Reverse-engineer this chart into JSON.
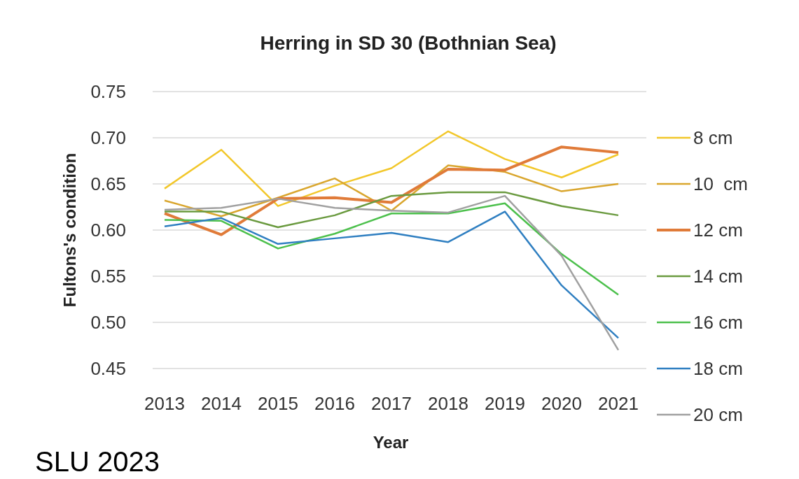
{
  "chart_data": {
    "type": "line",
    "title": "Herring in SD 30 (Bothnian Sea)",
    "xlabel": "Year",
    "ylabel": "Fultons's condition",
    "annotations": [
      "SLU 2023"
    ],
    "categories": [
      "2013",
      "2014",
      "2015",
      "2016",
      "2017",
      "2018",
      "2019",
      "2020",
      "2021"
    ],
    "ylim": [
      0.45,
      0.75
    ],
    "yticks": [
      0.45,
      {
        "value": 0.5,
        "label": "0.50"
      },
      0.55,
      {
        "value": 0.6,
        "label": "0.60"
      },
      0.65,
      {
        "value": 0.7,
        "label": "0.70"
      },
      0.75
    ],
    "grid": "y",
    "legend": "right",
    "marker": "none",
    "line_style": "solid",
    "series": [
      {
        "name": "8 cm",
        "color": "#f2c72a",
        "values": [
          0.645,
          0.687,
          0.626,
          0.648,
          0.667,
          0.707,
          0.677,
          0.657,
          0.682
        ]
      },
      {
        "name": "10  cm",
        "color": "#d9a62e",
        "values": [
          0.632,
          0.615,
          0.635,
          0.656,
          0.621,
          0.67,
          0.663,
          0.642,
          0.65
        ]
      },
      {
        "name": "12 cm",
        "color": "#e07b39",
        "values": [
          0.618,
          0.595,
          0.634,
          0.635,
          0.63,
          0.666,
          0.665,
          0.69,
          0.684
        ]
      },
      {
        "name": "14 cm",
        "color": "#6a9a3f",
        "values": [
          0.62,
          0.62,
          0.603,
          0.616,
          0.637,
          0.641,
          0.641,
          0.626,
          0.616
        ]
      },
      {
        "name": "16 cm",
        "color": "#4cc04c",
        "values": [
          0.611,
          0.61,
          0.58,
          0.596,
          0.618,
          0.618,
          0.629,
          0.574,
          0.53
        ]
      },
      {
        "name": "18 cm",
        "color": "#2f7fc1",
        "values": [
          0.604,
          0.613,
          0.585,
          0.591,
          0.597,
          0.587,
          0.62,
          0.54,
          0.483
        ]
      },
      {
        "name": "20 cm",
        "color": "#a0a0a0",
        "values": [
          0.622,
          0.624,
          0.634,
          0.624,
          0.621,
          0.619,
          0.637,
          0.572,
          0.47
        ]
      }
    ]
  }
}
